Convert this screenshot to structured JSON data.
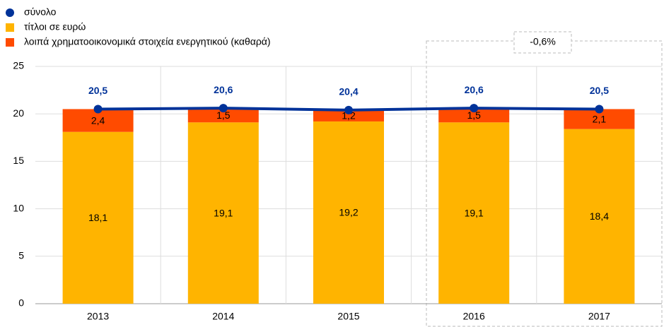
{
  "chart_data": {
    "type": "bar",
    "stacked": true,
    "categories": [
      "2013",
      "2014",
      "2015",
      "2016",
      "2017"
    ],
    "series": [
      {
        "name": "σύνολο",
        "type": "line",
        "color": "#003299",
        "values": [
          20.5,
          20.6,
          20.4,
          20.6,
          20.5
        ],
        "value_labels": [
          "20,5",
          "20,6",
          "20,4",
          "20,6",
          "20,5"
        ]
      },
      {
        "name": "τίτλοι σε ευρώ",
        "type": "bar",
        "color": "#FFB400",
        "values": [
          18.1,
          19.1,
          19.2,
          19.1,
          18.4
        ],
        "value_labels": [
          "18,1",
          "19,1",
          "19,2",
          "19,1",
          "18,4"
        ]
      },
      {
        "name": "λοιπά χρηματοοικονομικά στοιχεία ενεργητικού (καθαρά)",
        "type": "bar",
        "color": "#FF4B00",
        "values": [
          2.4,
          1.5,
          1.2,
          1.5,
          2.1
        ],
        "value_labels": [
          "2,4",
          "1,5",
          "1,2",
          "1,5",
          "2,1"
        ]
      }
    ],
    "ylim": [
      0,
      25
    ],
    "yticks": [
      0,
      5,
      10,
      15,
      20,
      25
    ],
    "grid": true,
    "legend": "top-left",
    "annotations": [
      {
        "text": "-0,6%",
        "color": "#FF0000"
      }
    ]
  }
}
